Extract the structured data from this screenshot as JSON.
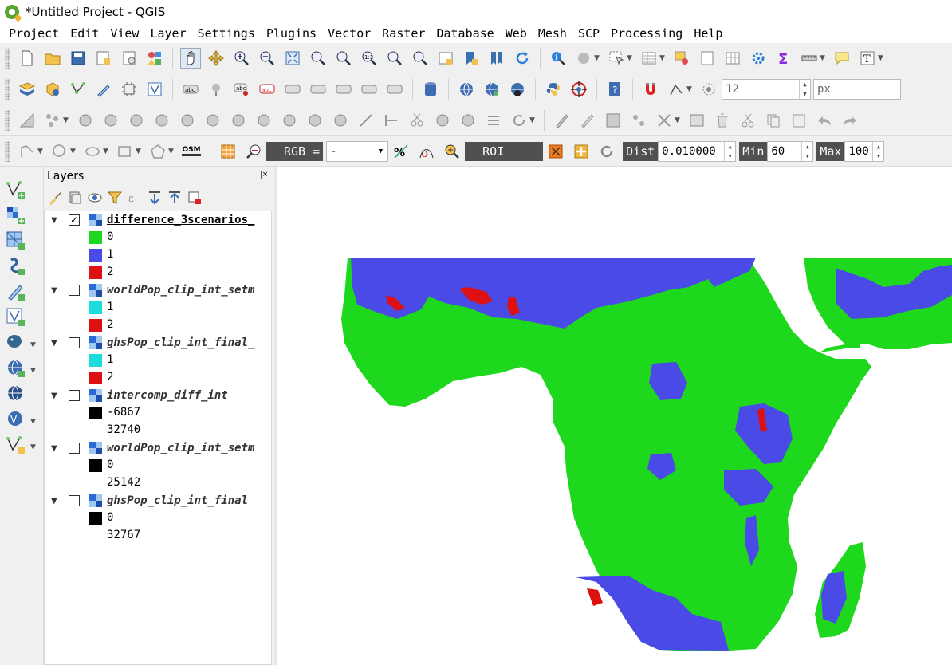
{
  "window": {
    "title": "*Untitled Project - QGIS"
  },
  "menu": [
    "Project",
    "Edit",
    "View",
    "Layer",
    "Settings",
    "Plugins",
    "Vector",
    "Raster",
    "Database",
    "Web",
    "Mesh",
    "SCP",
    "Processing",
    "Help"
  ],
  "toolbar2": {
    "font_size_value": "12",
    "unit_value": "px"
  },
  "scp_toolbar": {
    "osm_label": "OSM",
    "rgb_label": "RGB =",
    "rgb_value": "-",
    "roi_label": "ROI",
    "dist_label": "Dist",
    "dist_value": "0.010000",
    "min_label": "Min",
    "min_value": "60",
    "max_label": "Max",
    "max_value": "100"
  },
  "layers_panel": {
    "title": "Layers",
    "layers": [
      {
        "name": "difference_3scenarios_",
        "checked": true,
        "active": true,
        "classes": [
          {
            "label": "0",
            "color": "#1ed81e"
          },
          {
            "label": "1",
            "color": "#4a4ae6"
          },
          {
            "label": "2",
            "color": "#dd1111"
          }
        ]
      },
      {
        "name": "worldPop_clip_int_setm",
        "checked": false,
        "active": false,
        "classes": [
          {
            "label": "1",
            "color": "#1edcdc"
          },
          {
            "label": "2",
            "color": "#dd1111"
          }
        ]
      },
      {
        "name": "ghsPop_clip_int_final_",
        "checked": false,
        "active": false,
        "classes": [
          {
            "label": "1",
            "color": "#1edcdc"
          },
          {
            "label": "2",
            "color": "#dd1111"
          }
        ]
      },
      {
        "name": "intercomp_diff_int",
        "checked": false,
        "active": false,
        "classes": [
          {
            "label": "-6867",
            "color": "#000000"
          },
          {
            "label": "32740",
            "color": null
          }
        ]
      },
      {
        "name": "worldPop_clip_int_setm",
        "checked": false,
        "active": false,
        "classes": [
          {
            "label": "0",
            "color": "#000000"
          },
          {
            "label": "25142",
            "color": null
          }
        ]
      },
      {
        "name": "ghsPop_clip_int_final",
        "checked": false,
        "active": false,
        "classes": [
          {
            "label": "0",
            "color": "#000000"
          },
          {
            "label": "32767",
            "color": null
          }
        ]
      }
    ]
  },
  "map_colors": {
    "class0": "#1ed81e",
    "class1": "#4a4ae6",
    "class2": "#dd1111",
    "background": "#ffffff"
  }
}
